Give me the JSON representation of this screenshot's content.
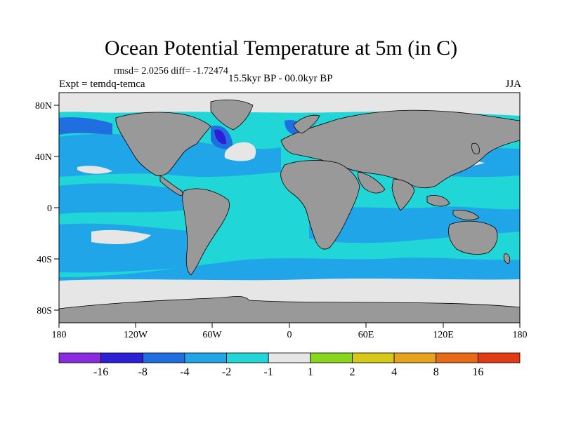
{
  "title": "Ocean Potential Temperature at 5m (in C)",
  "stats": "rmsd= 2.0256  diff= -1.72474",
  "experiment": "Expt = temdq-temca",
  "period": "15.5kyr BP - 00.0kyr BP",
  "season": "JJA",
  "map": {
    "lon_ticks": [
      "180",
      "120W",
      "60W",
      "0",
      "60E",
      "120E",
      "180"
    ],
    "lat_ticks": [
      "80N",
      "40N",
      "0",
      "40S",
      "80S"
    ]
  },
  "colorbar": {
    "colors": [
      "#8a2be2",
      "#2d1fd6",
      "#1f6fe0",
      "#20a6e8",
      "#21d6d6",
      "#e6e6e6",
      "#8ad61e",
      "#d6c816",
      "#e6a21a",
      "#e86a16",
      "#e23a12"
    ],
    "labels": [
      "-16",
      "-8",
      "-4",
      "-2",
      "-1",
      "1",
      "2",
      "4",
      "8",
      "16"
    ]
  },
  "palette": {
    "land": "#999999",
    "ocean_main": "#21d6d6",
    "ocean_cool": "#20a6e8",
    "ocean_deep": "#1f6fe0",
    "ocean_deepest": "#2d1fd6",
    "near_zero": "#e6e6e6",
    "warm": "#8ad61e"
  }
}
